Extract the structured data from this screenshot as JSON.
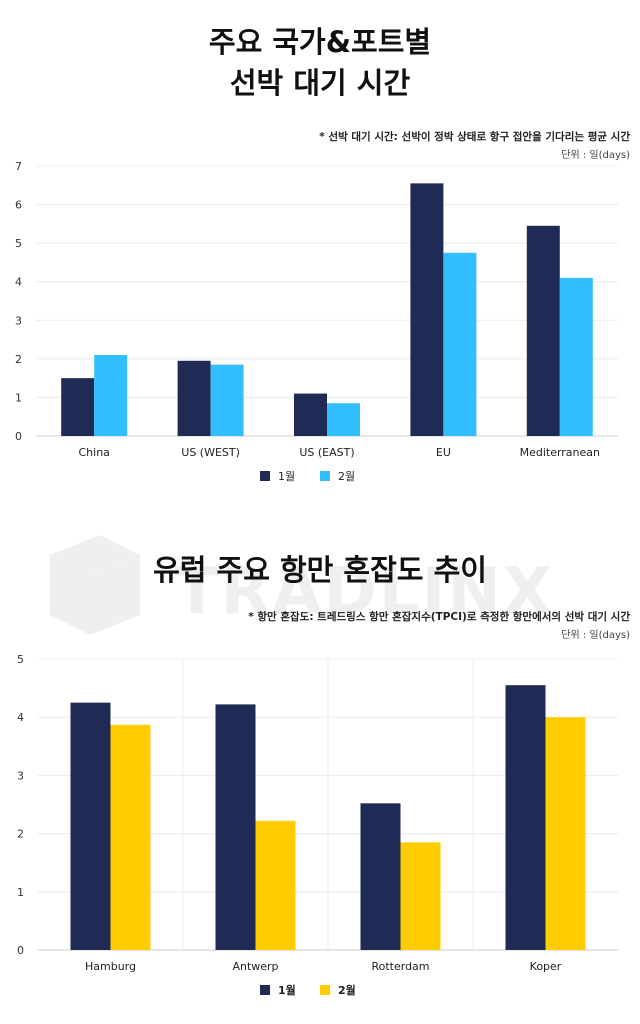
{
  "chart_data": [
    {
      "type": "bar",
      "title_lines": [
        "주요 국가&포트별",
        "선박 대기 시간"
      ],
      "note": "* 선박 대기 시간: 선박이 정박 상태로 항구 접안을 기다리는 평균 시간",
      "unit": "단위 : 일(days)",
      "categories": [
        "China",
        "US (WEST)",
        "US (EAST)",
        "EU",
        "Mediterranean"
      ],
      "series": [
        {
          "name": "1월",
          "color": "#1f2a55",
          "values": [
            1.5,
            1.95,
            1.1,
            6.55,
            5.45
          ]
        },
        {
          "name": "2월",
          "color": "#33bfff",
          "values": [
            2.1,
            1.85,
            0.85,
            4.75,
            4.1
          ]
        }
      ],
      "ylim": [
        0,
        7
      ],
      "yticks": [
        0,
        1,
        2,
        3,
        4,
        5,
        6,
        7
      ],
      "grid": true,
      "legend": "bottom-center"
    },
    {
      "type": "bar",
      "title": "유럽 주요 항만 혼잡도 추이",
      "note": "* 항만 혼잡도: 트레드링스 항만 혼잡지수(TPCI)로 측정한 항만에서의 선박 대기 시간",
      "unit": "단위 : 일(days)",
      "categories": [
        "Hamburg",
        "Antwerp",
        "Rotterdam",
        "Koper"
      ],
      "series": [
        {
          "name": "1월",
          "color": "#1f2a55",
          "values": [
            4.25,
            4.22,
            2.52,
            4.55
          ]
        },
        {
          "name": "2월",
          "color": "#ffcc00",
          "values": [
            3.87,
            2.22,
            1.85,
            4.0
          ]
        }
      ],
      "ylim": [
        0,
        5
      ],
      "yticks": [
        0,
        1,
        2,
        3,
        4,
        5
      ],
      "grid": true,
      "legend": "bottom-center"
    }
  ]
}
